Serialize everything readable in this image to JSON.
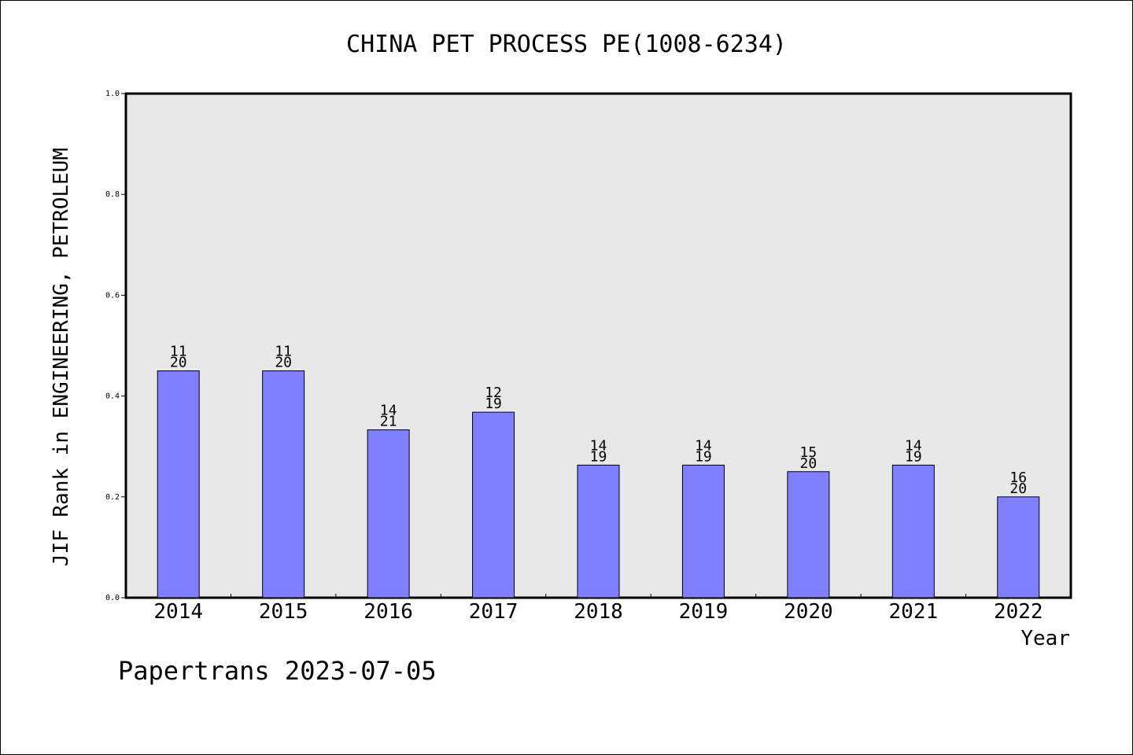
{
  "chart_data": {
    "type": "bar",
    "title": "CHINA PET PROCESS PE(1008-6234)",
    "xlabel": "Year",
    "ylabel": "JIF Rank in ENGINEERING, PETROLEUM",
    "categories": [
      "2014",
      "2015",
      "2016",
      "2017",
      "2018",
      "2019",
      "2020",
      "2021",
      "2022"
    ],
    "values": [
      0.45,
      0.45,
      0.333,
      0.368,
      0.263,
      0.263,
      0.25,
      0.263,
      0.2
    ],
    "rank": [
      "11",
      "11",
      "14",
      "12",
      "14",
      "14",
      "15",
      "14",
      "16"
    ],
    "total": [
      "20",
      "20",
      "21",
      "19",
      "19",
      "19",
      "20",
      "19",
      "20"
    ],
    "ylim": [
      0,
      1.0
    ],
    "yticks": [
      "0.0",
      "0.2",
      "0.4",
      "0.6",
      "0.8",
      "1.0"
    ],
    "grid": false,
    "bar_color": "#8080ff",
    "plot_bg": "#e8e8e8"
  },
  "footer": "Papertrans 2023-07-05"
}
